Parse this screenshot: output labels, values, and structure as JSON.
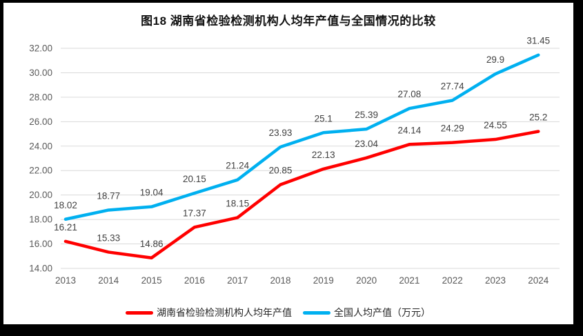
{
  "frame": {
    "background_color": "#000000",
    "card_background_color": "#FFFFFF"
  },
  "chart_data": {
    "type": "line",
    "title": "图18 湖南省检验检测机构人均年产值与全国情况的比较",
    "categories": [
      "2013",
      "2014",
      "2015",
      "2016",
      "2017",
      "2018",
      "2019",
      "2020",
      "2021",
      "2022",
      "2023",
      "2024"
    ],
    "series": [
      {
        "name": "湖南省检验检测机构人均年产值",
        "color": "#FF0000",
        "values": [
          16.21,
          15.33,
          14.86,
          17.37,
          18.15,
          20.85,
          22.13,
          23.04,
          24.14,
          24.29,
          24.55,
          25.2
        ]
      },
      {
        "name": "全国人均产值（万元）",
        "color": "#00B0F0",
        "values": [
          18.02,
          18.77,
          19.04,
          20.15,
          21.24,
          23.93,
          25.1,
          25.39,
          27.08,
          27.74,
          29.9,
          31.45
        ]
      }
    ],
    "xlabel": "",
    "ylabel": "",
    "ylim": [
      14,
      32
    ],
    "y_tick_step": 2,
    "y_tick_labels": [
      "14.00",
      "16.00",
      "18.00",
      "20.00",
      "22.00",
      "24.00",
      "26.00",
      "28.00",
      "30.00",
      "32.00"
    ],
    "grid": true,
    "data_labels": true,
    "legend_position": "bottom"
  },
  "styles": {
    "grid_color": "#D9D9D9",
    "tick_color": "#595959",
    "data_label_color": "#404040",
    "title_color": "#111111",
    "legend_text_color": "#262626"
  }
}
